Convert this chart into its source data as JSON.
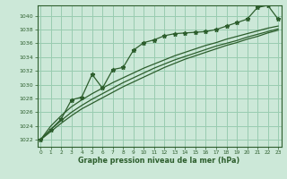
{
  "title": "Graphe pression niveau de la mer (hPa)",
  "bg_color": "#cce8d8",
  "grid_color": "#99ccb0",
  "line_color": "#2d5e2d",
  "x_ticks": [
    0,
    1,
    2,
    3,
    4,
    5,
    6,
    7,
    8,
    9,
    10,
    11,
    12,
    13,
    14,
    15,
    16,
    17,
    18,
    19,
    20,
    21,
    22,
    23
  ],
  "y_ticks": [
    1022,
    1024,
    1026,
    1028,
    1030,
    1032,
    1034,
    1036,
    1038,
    1040
  ],
  "ylim": [
    1021.0,
    1041.5
  ],
  "xlim": [
    -0.3,
    23.3
  ],
  "main_data": [
    1022.0,
    1023.5,
    1025.0,
    1027.8,
    1028.2,
    1031.5,
    1029.5,
    1032.2,
    1032.5,
    1035.0,
    1036.1,
    1036.5,
    1037.1,
    1037.4,
    1037.5,
    1037.6,
    1037.7,
    1038.0,
    1038.5,
    1039.0,
    1039.5,
    1041.2,
    1041.5,
    1039.5
  ],
  "trend1": [
    1022.0,
    1023.2,
    1024.4,
    1025.5,
    1026.5,
    1027.3,
    1028.1,
    1028.9,
    1029.7,
    1030.4,
    1031.1,
    1031.8,
    1032.5,
    1033.1,
    1033.7,
    1034.2,
    1034.7,
    1035.2,
    1035.7,
    1036.1,
    1036.6,
    1037.0,
    1037.5,
    1037.9
  ],
  "trend2": [
    1022.0,
    1023.5,
    1024.8,
    1026.0,
    1027.0,
    1027.9,
    1028.7,
    1029.5,
    1030.3,
    1031.0,
    1031.7,
    1032.4,
    1033.0,
    1033.6,
    1034.1,
    1034.6,
    1035.1,
    1035.6,
    1036.0,
    1036.4,
    1036.9,
    1037.3,
    1037.7,
    1038.1
  ],
  "trend3": [
    1022.0,
    1024.0,
    1025.5,
    1026.8,
    1027.8,
    1028.7,
    1029.5,
    1030.3,
    1031.0,
    1031.7,
    1032.4,
    1033.0,
    1033.6,
    1034.2,
    1034.7,
    1035.2,
    1035.7,
    1036.1,
    1036.6,
    1037.0,
    1037.4,
    1037.8,
    1038.2,
    1038.5
  ]
}
